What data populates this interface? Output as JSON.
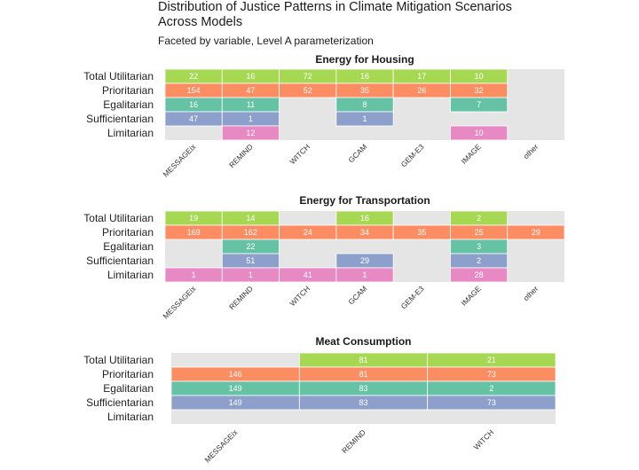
{
  "title": "Distribution of Justice Patterns in Climate Mitigation Scenarios Across Models",
  "subtitle": "Faceted by variable, Level A parameterization",
  "chart_data": {
    "type": "heatmap",
    "patterns": [
      "Total Utilitarian",
      "Prioritarian",
      "Egalitarian",
      "Sufficientarian",
      "Limitarian"
    ],
    "colors": {
      "Total Utilitarian": "#a6d854",
      "Prioritarian": "#fc8d62",
      "Egalitarian": "#66c2a5",
      "Sufficientarian": "#8da0cb",
      "Limitarian": "#e78ac3",
      "empty": "#e5e5e5"
    },
    "facets": [
      {
        "title": "Energy for Housing",
        "models": [
          "MESSAGEix",
          "REMIND",
          "WITCH",
          "GCAM",
          "GEM-E3",
          "IMAGE",
          "other"
        ],
        "values": [
          [
            22,
            16,
            72,
            16,
            17,
            10,
            null
          ],
          [
            154,
            47,
            52,
            35,
            26,
            32,
            null
          ],
          [
            16,
            11,
            null,
            8,
            null,
            7,
            null
          ],
          [
            47,
            1,
            null,
            1,
            null,
            null,
            null
          ],
          [
            null,
            12,
            null,
            null,
            null,
            10,
            null
          ]
        ]
      },
      {
        "title": "Energy for Transportation",
        "models": [
          "MESSAGEix",
          "REMIND",
          "WITCH",
          "GCAM",
          "GEM-E3",
          "IMAGE",
          "other"
        ],
        "values": [
          [
            19,
            14,
            null,
            16,
            null,
            2,
            null
          ],
          [
            169,
            162,
            24,
            34,
            35,
            25,
            29
          ],
          [
            null,
            22,
            null,
            null,
            null,
            3,
            null
          ],
          [
            null,
            51,
            null,
            29,
            null,
            2,
            null
          ],
          [
            1,
            1,
            41,
            1,
            null,
            28,
            null
          ]
        ]
      },
      {
        "title": "Meat Consumption",
        "models": [
          "MESSAGEix",
          "REMIND",
          "WITCH"
        ],
        "values": [
          [
            null,
            81,
            21
          ],
          [
            146,
            81,
            73
          ],
          [
            149,
            83,
            2
          ],
          [
            149,
            83,
            73
          ],
          [
            null,
            null,
            null
          ]
        ]
      }
    ]
  }
}
